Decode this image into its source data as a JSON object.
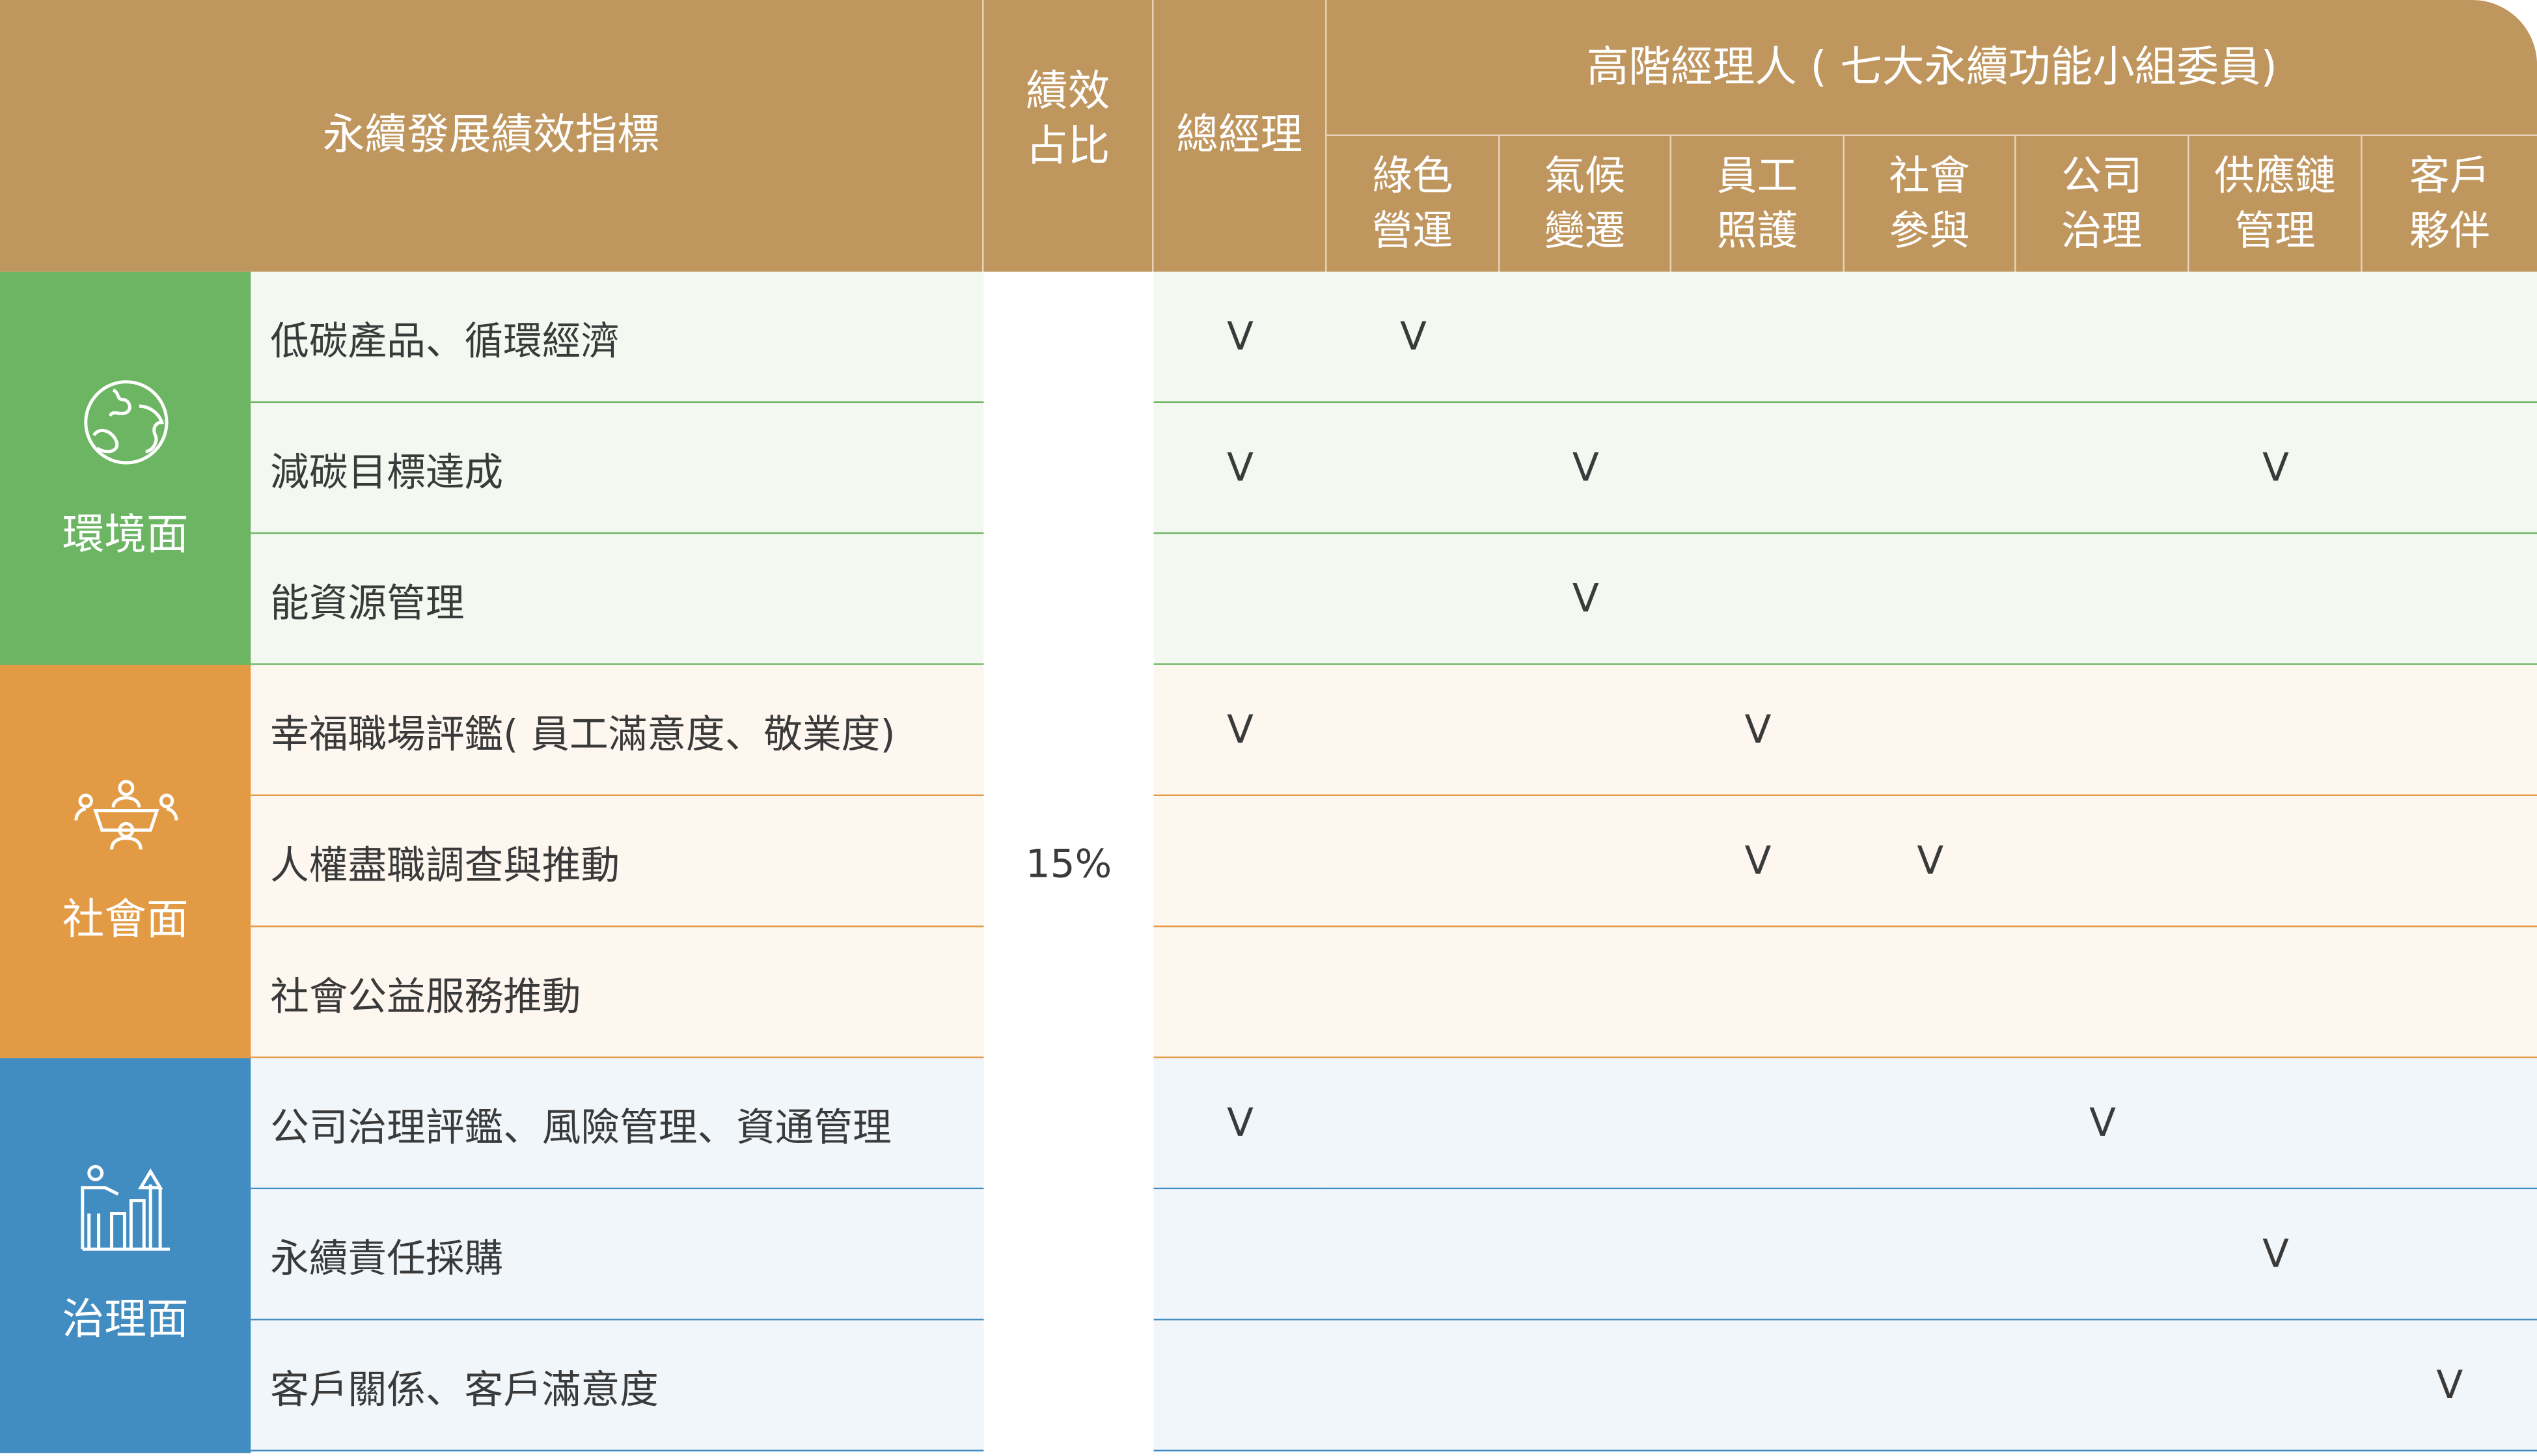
{
  "header": {
    "indicator": "永續發展績效指標",
    "weight": "績效\n占比",
    "gm": "總經理",
    "executives": "高階經理人 ( 七大永續功能小組委員)",
    "committees": [
      "綠色\n營運",
      "氣候\n變遷",
      "員工\n照護",
      "社會\n參與",
      "公司\n治理",
      "供應鏈\n管理",
      "客戶\n夥伴"
    ]
  },
  "weight_value": "15%",
  "mark": "V",
  "colors": {
    "header": "#c0965f",
    "environment": "#6cb563",
    "social": "#e39a45",
    "governance": "#418cc1"
  },
  "categories": [
    {
      "label": "環境面",
      "icon": "globe-icon",
      "color": "#6cb563",
      "row_bg": "#f3f8f1",
      "rows": [
        {
          "indicator": "低碳產品、循環經濟",
          "marks": [
            1,
            1,
            0,
            0,
            0,
            0,
            0,
            0
          ]
        },
        {
          "indicator": "減碳目標達成",
          "marks": [
            1,
            0,
            1,
            0,
            0,
            0,
            1,
            0
          ]
        },
        {
          "indicator": "能資源管理",
          "marks": [
            0,
            0,
            1,
            0,
            0,
            0,
            0,
            0
          ]
        }
      ]
    },
    {
      "label": "社會面",
      "icon": "meeting-people-icon",
      "color": "#e39a45",
      "row_bg": "#fdf7f0",
      "rows": [
        {
          "indicator": "幸福職場評鑑( 員工滿意度、敬業度)",
          "marks": [
            1,
            0,
            0,
            1,
            0,
            0,
            0,
            0
          ]
        },
        {
          "indicator": "人權盡職調查與推動",
          "marks": [
            0,
            0,
            0,
            1,
            1,
            0,
            0,
            0
          ]
        },
        {
          "indicator": "社會公益服務推動",
          "marks": [
            0,
            0,
            0,
            0,
            0,
            0,
            0,
            0
          ]
        }
      ]
    },
    {
      "label": "治理面",
      "icon": "presenter-chart-icon",
      "color": "#418cc1",
      "row_bg": "#f1f6fa",
      "rows": [
        {
          "indicator": "公司治理評鑑、風險管理、資通管理",
          "marks": [
            1,
            0,
            0,
            0,
            0,
            1,
            0,
            0
          ]
        },
        {
          "indicator": "永續責任採購",
          "marks": [
            0,
            0,
            0,
            0,
            0,
            0,
            1,
            0
          ]
        },
        {
          "indicator": "客戶關係、客戶滿意度",
          "marks": [
            0,
            0,
            0,
            0,
            0,
            0,
            0,
            1
          ]
        }
      ]
    }
  ]
}
